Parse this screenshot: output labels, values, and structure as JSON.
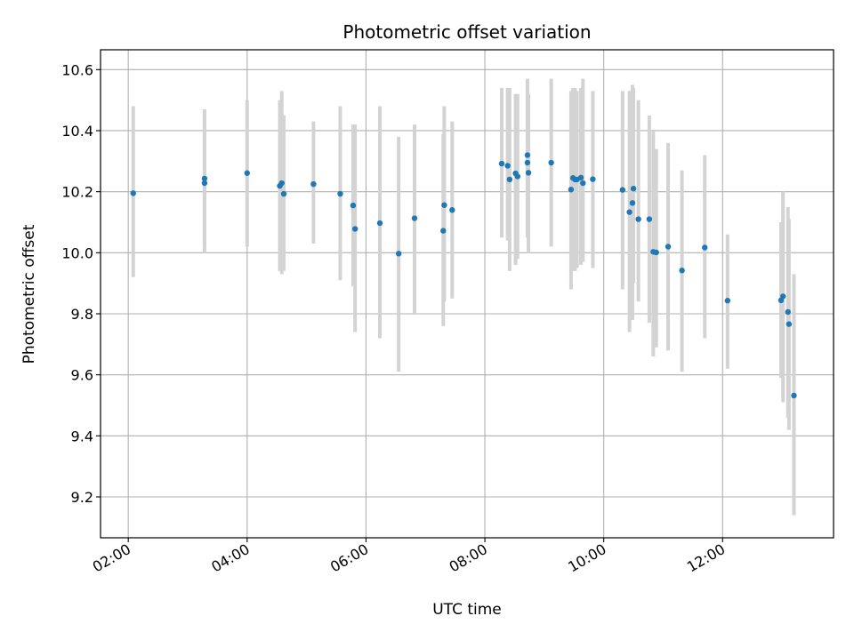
{
  "chart_data": {
    "type": "scatter",
    "title": "Photometric offset variation",
    "xlabel": "UTC time",
    "ylabel": "Photometric offset",
    "x_unit": "hours (UTC)",
    "xlim": [
      "01:32",
      "13:52"
    ],
    "ylim": [
      9.066,
      10.665
    ],
    "x_ticks": [
      {
        "time": "02:00",
        "label": "02:00"
      },
      {
        "time": "04:00",
        "label": "04:00"
      },
      {
        "time": "06:00",
        "label": "06:00"
      },
      {
        "time": "08:00",
        "label": "08:00"
      },
      {
        "time": "10:00",
        "label": "10:00"
      },
      {
        "time": "12:00",
        "label": "12:00"
      }
    ],
    "y_ticks": [
      {
        "value": 9.2,
        "label": "9.2"
      },
      {
        "value": 9.4,
        "label": "9.4"
      },
      {
        "value": 9.6,
        "label": "9.6"
      },
      {
        "value": 9.8,
        "label": "9.8"
      },
      {
        "value": 10.0,
        "label": "10.0"
      },
      {
        "value": 10.2,
        "label": "10.2"
      },
      {
        "value": 10.4,
        "label": "10.4"
      },
      {
        "value": 10.6,
        "label": "10.6"
      }
    ],
    "grid": true,
    "colors": {
      "point": "#1f77b4",
      "errorbar": "#d3d3d3",
      "grid": "#b0b0b0"
    },
    "series": [
      {
        "x": [
          "02:05",
          "03:17",
          "03:17",
          "04:00",
          "04:33",
          "04:35",
          "04:37",
          "05:07",
          "05:34",
          "05:47",
          "05:49",
          "06:14",
          "06:33",
          "06:49",
          "07:18",
          "07:19",
          "07:27",
          "08:17",
          "08:23",
          "08:25",
          "08:31",
          "08:33",
          "08:43",
          "08:43",
          "08:44",
          "09:07",
          "09:27",
          "09:29",
          "09:31",
          "09:33",
          "09:37",
          "09:39",
          "09:49",
          "10:19",
          "10:26",
          "10:29",
          "10:30",
          "10:35",
          "10:46",
          "10:50",
          "10:53",
          "11:05",
          "11:19",
          "11:42",
          "12:05",
          "12:59",
          "13:01",
          "13:06",
          "13:07",
          "13:12"
        ],
        "y": [
          10.195,
          10.243,
          10.228,
          10.261,
          10.219,
          10.228,
          10.193,
          10.225,
          10.193,
          10.155,
          10.078,
          10.097,
          9.997,
          10.113,
          10.072,
          10.156,
          10.14,
          10.292,
          10.285,
          10.24,
          10.26,
          10.25,
          10.32,
          10.295,
          10.262,
          10.295,
          10.207,
          10.245,
          10.24,
          10.24,
          10.246,
          10.228,
          10.241,
          10.206,
          10.133,
          10.163,
          10.21,
          10.11,
          10.11,
          10.003,
          10.001,
          10.02,
          9.942,
          10.017,
          9.843,
          9.844,
          9.857,
          9.806,
          9.766,
          9.532
        ],
        "y_low": [
          9.92,
          10.0,
          10.02,
          10.02,
          9.94,
          9.93,
          9.94,
          10.03,
          9.91,
          9.89,
          9.74,
          9.72,
          9.61,
          9.8,
          9.76,
          9.84,
          9.85,
          10.05,
          10.04,
          9.94,
          9.96,
          9.98,
          10.05,
          10.07,
          10.0,
          10.02,
          9.88,
          9.94,
          9.94,
          9.95,
          9.96,
          9.97,
          9.95,
          9.88,
          9.74,
          9.78,
          9.9,
          9.84,
          9.77,
          9.66,
          9.69,
          9.68,
          9.61,
          9.72,
          9.62,
          9.59,
          9.51,
          9.46,
          9.42,
          9.14
        ],
        "y_high": [
          10.48,
          10.47,
          10.47,
          10.5,
          10.5,
          10.53,
          10.45,
          10.43,
          10.48,
          10.42,
          10.42,
          10.48,
          10.38,
          10.42,
          10.39,
          10.48,
          10.43,
          10.54,
          10.54,
          10.54,
          10.52,
          10.52,
          10.57,
          10.52,
          10.52,
          10.57,
          10.53,
          10.54,
          10.54,
          10.53,
          10.54,
          10.57,
          10.53,
          10.53,
          10.53,
          10.55,
          10.54,
          10.5,
          10.45,
          10.4,
          10.34,
          10.36,
          10.27,
          10.32,
          10.06,
          10.1,
          10.2,
          10.15,
          10.11,
          9.93
        ]
      }
    ]
  }
}
